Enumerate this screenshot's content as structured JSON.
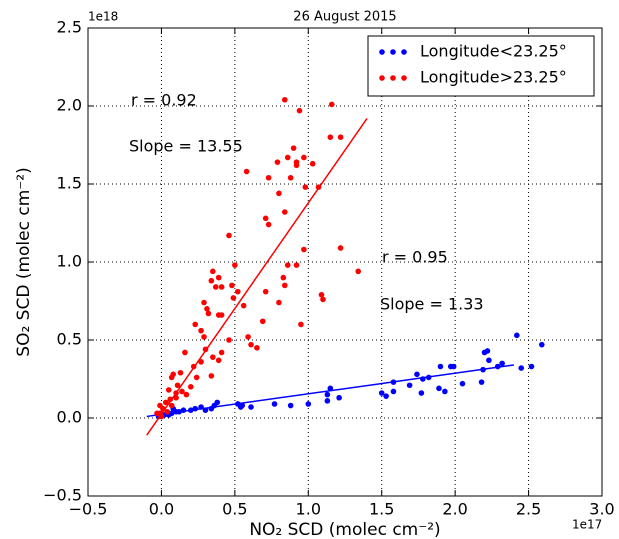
{
  "chart_data": {
    "type": "scatter",
    "title": "26 August 2015",
    "x_label": "NO₂ SCD (molec cm⁻²)",
    "y_label": "SO₂ SCD (molec cm⁻²)",
    "x_offset_label": "1e17",
    "y_offset_label": "1e18",
    "xlim": [
      -0.5,
      3.0
    ],
    "ylim": [
      -0.5,
      2.5
    ],
    "xticks": [
      {
        "value": -0.5,
        "label": "−0.5"
      },
      {
        "value": 0,
        "label": "0.0"
      },
      0.5,
      {
        "value": 1,
        "label": "1.0"
      },
      1.5,
      {
        "value": 2,
        "label": "2.0"
      },
      2.5,
      {
        "value": 3,
        "label": "3.0"
      }
    ],
    "yticks": [
      {
        "value": -0.5,
        "label": "−0.5"
      },
      {
        "value": 0,
        "label": "0.0"
      },
      0.5,
      {
        "value": 1,
        "label": "1.0"
      },
      1.5,
      {
        "value": 2,
        "label": "2.0"
      },
      2.5
    ],
    "grid": true,
    "legend": "upper right",
    "series": [
      {
        "name": "Longitude<23.25°",
        "color": "#0000ff",
        "annotations": [
          "r = 0.95",
          "Slope = 1.33"
        ],
        "fit_x": [
          -0.1,
          2.4
        ],
        "fit_y": [
          0.01,
          0.34
        ],
        "x": [
          2.42,
          2.59,
          2.2,
          2.22,
          2.23,
          1.97,
          1.9,
          1.99,
          2.32,
          2.29,
          2.45,
          2.52,
          2.19,
          1.74,
          1.78,
          1.82,
          2.05,
          2.18,
          1.69,
          1.58,
          1.89,
          1.93,
          1.77,
          1.58,
          1.5,
          1.53,
          1.15,
          1.13,
          1.13,
          1.21,
          1.0,
          0.88,
          0.77,
          0.61,
          0.54,
          0.52,
          0.55,
          0.38,
          0.36,
          0.34,
          0.3,
          0.27,
          0.23,
          0.2,
          0.15,
          0.12,
          0.1,
          0.07,
          0.05,
          0.02,
          0.0,
          -0.02,
          0.08
        ],
        "values": [
          0.53,
          0.47,
          0.42,
          0.43,
          0.37,
          0.33,
          0.33,
          0.33,
          0.35,
          0.33,
          0.32,
          0.33,
          0.31,
          0.28,
          0.25,
          0.26,
          0.22,
          0.23,
          0.21,
          0.23,
          0.19,
          0.17,
          0.16,
          0.17,
          0.16,
          0.14,
          0.19,
          0.15,
          0.11,
          0.13,
          0.09,
          0.08,
          0.09,
          0.07,
          0.07,
          0.09,
          0.08,
          0.1,
          0.08,
          0.06,
          0.05,
          0.07,
          0.06,
          0.05,
          0.05,
          0.04,
          0.04,
          0.03,
          0.02,
          0.02,
          0.01,
          0.01,
          0.06
        ]
      },
      {
        "name": "Longitude>23.25°",
        "color": "#ff0000",
        "annotations": [
          "r = 0.92",
          "Slope = 13.55"
        ],
        "fit_x": [
          -0.1,
          1.4
        ],
        "fit_y": [
          -0.11,
          1.92
        ],
        "x": [
          0.84,
          1.16,
          0.94,
          1.15,
          1.22,
          0.9,
          0.86,
          0.97,
          0.92,
          0.92,
          0.79,
          1.03,
          0.58,
          0.88,
          0.73,
          1.07,
          0.8,
          0.98,
          0.84,
          0.71,
          0.73,
          0.46,
          0.97,
          1.22,
          0.86,
          0.92,
          0.5,
          1.34,
          0.35,
          0.39,
          0.83,
          0.84,
          0.48,
          0.71,
          0.52,
          1.09,
          1.1,
          0.34,
          0.37,
          0.41,
          0.49,
          0.56,
          0.8,
          0.29,
          0.31,
          0.32,
          0.39,
          0.41,
          0.95,
          0.69,
          0.23,
          0.27,
          0.29,
          0.59,
          0.46,
          0.61,
          0.65,
          0.16,
          0.3,
          0.41,
          0.35,
          0.39,
          0.27,
          0.22,
          0.13,
          0.07,
          0.08,
          0.24,
          0.34,
          0.11,
          0.05,
          0.14,
          0.17,
          0.1,
          0.03,
          0.07,
          0.01,
          0.04,
          -0.01,
          0.0,
          -0.03,
          0.06,
          0.1,
          0.2,
          -0.01
        ],
        "values": [
          2.04,
          2.01,
          1.97,
          1.8,
          1.8,
          1.73,
          1.67,
          1.67,
          1.64,
          1.62,
          1.64,
          1.63,
          1.58,
          1.54,
          1.54,
          1.48,
          1.44,
          1.48,
          1.32,
          1.28,
          1.24,
          1.17,
          1.08,
          1.09,
          0.98,
          0.98,
          0.98,
          0.94,
          0.94,
          0.9,
          0.9,
          0.85,
          0.85,
          0.81,
          0.81,
          0.79,
          0.76,
          0.88,
          0.84,
          0.84,
          0.77,
          0.72,
          0.74,
          0.74,
          0.7,
          0.67,
          0.66,
          0.66,
          0.6,
          0.62,
          0.6,
          0.56,
          0.52,
          0.52,
          0.5,
          0.47,
          0.45,
          0.42,
          0.44,
          0.42,
          0.39,
          0.37,
          0.36,
          0.33,
          0.29,
          0.26,
          0.28,
          0.26,
          0.27,
          0.21,
          0.18,
          0.17,
          0.15,
          0.13,
          0.1,
          0.08,
          0.06,
          0.04,
          0.03,
          0.01,
          0.03,
          0.12,
          0.16,
          0.2,
          0.08
        ]
      }
    ]
  }
}
